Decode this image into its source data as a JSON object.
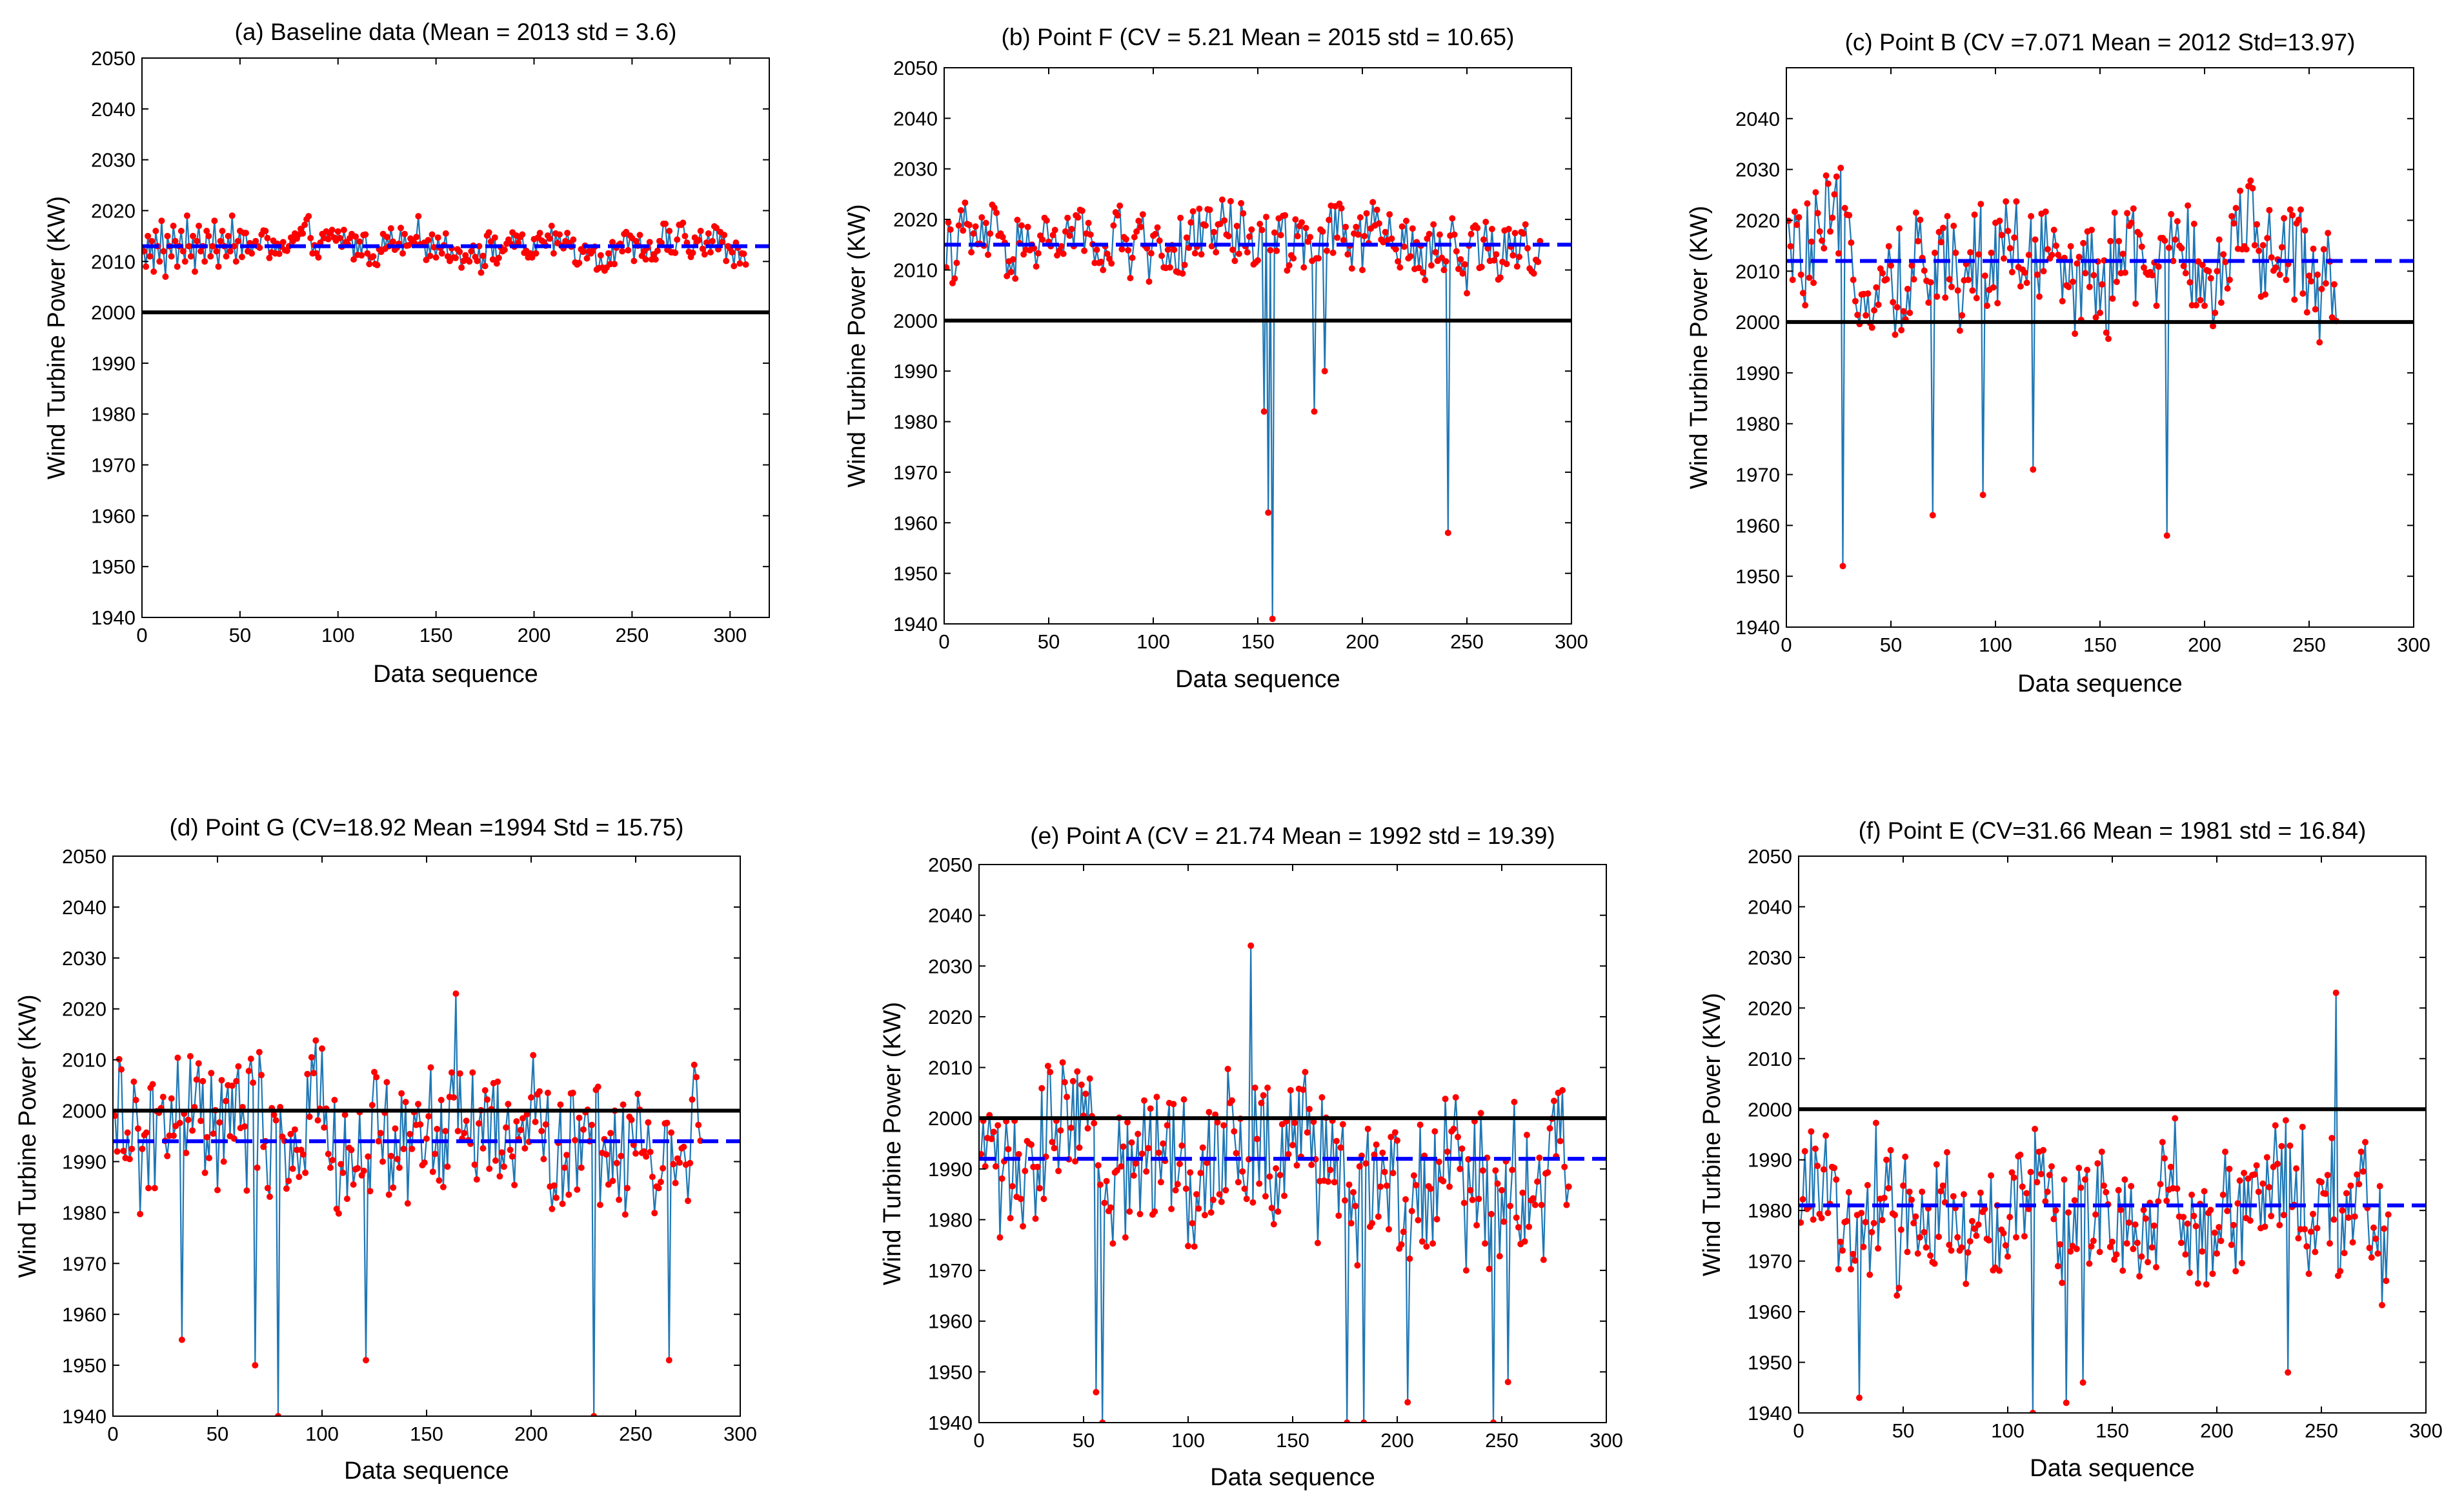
{
  "colors": {
    "series_line": "#1f77b4",
    "markers": "#ff0000",
    "mean_line": "#0000ff",
    "reference_line": "#000000"
  },
  "chart_data": [
    {
      "type": "line",
      "title": "(a) Baseline data (Mean = 2013 std = 3.6)",
      "xlabel": "Data sequence",
      "ylabel": "Wind Turbine Power (KW)",
      "xlim": [
        0,
        320
      ],
      "ylim": [
        1940,
        2050
      ],
      "xticks": [
        0,
        50,
        100,
        150,
        200,
        250,
        300
      ],
      "yticks": [
        1940,
        1950,
        1960,
        1970,
        1980,
        1990,
        2000,
        2010,
        2020,
        2030,
        2040,
        2050
      ],
      "mean": 2013,
      "reference": 2000,
      "series": {
        "name": "Wind Turbine Power",
        "n": 308,
        "center": 2013,
        "spread": 3.6,
        "spikes": [],
        "values": [
          2012,
          2009,
          2015,
          2011,
          2014,
          2008,
          2016,
          2013,
          2010,
          2018,
          2012,
          2007,
          2015,
          2013,
          2011,
          2017,
          2014,
          2009,
          2013,
          2016,
          2012,
          2010,
          2019,
          2013,
          2011,
          2015,
          2008,
          2014,
          2017,
          2012,
          2013,
          2010,
          2016,
          2015,
          2011,
          2013,
          2018,
          2012,
          2009,
          2014,
          2016,
          2013,
          2011,
          2015,
          2012,
          2019,
          2013,
          2010,
          2014,
          2016
        ]
      }
    },
    {
      "type": "line",
      "title": "(b)  Point F (CV = 5.21 Mean = 2015 std = 10.65)",
      "xlabel": "Data sequence",
      "ylabel": "Wind Turbine Power (KW)",
      "xlim": [
        0,
        300
      ],
      "ylim": [
        1940,
        2050
      ],
      "xticks": [
        0,
        50,
        100,
        150,
        200,
        250,
        300
      ],
      "yticks": [
        1940,
        1950,
        1960,
        1970,
        1980,
        1990,
        2000,
        2010,
        2020,
        2030,
        2040,
        2050
      ],
      "mean": 2015,
      "reference": 2000,
      "series": {
        "name": "Wind Turbine Power",
        "n": 285,
        "center": 2015,
        "spread": 7,
        "spikes": [
          [
            152,
            1982
          ],
          [
            154,
            1962
          ],
          [
            156,
            1941
          ],
          [
            176,
            1982
          ],
          [
            181,
            1990
          ],
          [
            240,
            1958
          ]
        ]
      }
    },
    {
      "type": "line",
      "title": "(c) Point B (CV =7.071 Mean = 2012 Std=13.97)",
      "xlabel": "Data sequence",
      "ylabel": "Wind Turbine Power (KW)",
      "xlim": [
        0,
        300
      ],
      "ylim": [
        1940,
        2050
      ],
      "xticks": [
        0,
        50,
        100,
        150,
        200,
        250,
        300
      ],
      "yticks": [
        1940,
        1950,
        1960,
        1970,
        1980,
        1990,
        2000,
        2010,
        2020,
        2030,
        2040
      ],
      "mean": 2012,
      "reference": 2000,
      "series": {
        "name": "Wind Turbine Power",
        "n": 263,
        "center": 2012,
        "spread": 12,
        "spikes": [
          [
            26,
            1952
          ],
          [
            69,
            1962
          ],
          [
            93,
            1966
          ],
          [
            117,
            1971
          ],
          [
            181,
            1958
          ]
        ]
      }
    },
    {
      "type": "line",
      "title": "(d)  Point G (CV=18.92 Mean =1994 Std = 15.75)",
      "xlabel": "Data sequence",
      "ylabel": "Wind Turbine Power (KW)",
      "xlim": [
        0,
        300
      ],
      "ylim": [
        1940,
        2050
      ],
      "xticks": [
        0,
        50,
        100,
        150,
        200,
        250,
        300
      ],
      "yticks": [
        1940,
        1950,
        1960,
        1970,
        1980,
        1990,
        2000,
        2010,
        2020,
        2030,
        2040,
        2050
      ],
      "mean": 1994,
      "reference": 2000,
      "series": {
        "name": "Wind Turbine Power",
        "n": 281,
        "center": 1994,
        "spread": 14,
        "spikes": [
          [
            32,
            1955
          ],
          [
            67,
            1950
          ],
          [
            78,
            1940
          ],
          [
            120,
            1951
          ],
          [
            163,
            2023
          ],
          [
            229,
            1940
          ],
          [
            265,
            1951
          ]
        ]
      }
    },
    {
      "type": "line",
      "title": "(e) Point A (CV = 21.74 Mean = 1992 std = 19.39)",
      "xlabel": "Data sequence",
      "ylabel": "Wind Turbine Power (KW)",
      "xlim": [
        0,
        300
      ],
      "ylim": [
        1940,
        2050
      ],
      "xticks": [
        0,
        50,
        100,
        150,
        200,
        250,
        300
      ],
      "yticks": [
        1940,
        1950,
        1960,
        1970,
        1980,
        1990,
        2000,
        2010,
        2020,
        2030,
        2040,
        2050
      ],
      "mean": 1992,
      "reference": 2000,
      "series": {
        "name": "Wind Turbine Power",
        "n": 282,
        "center": 1992,
        "spread": 16,
        "spikes": [
          [
            55,
            1946
          ],
          [
            58,
            1940
          ],
          [
            129,
            2034
          ],
          [
            175,
            1940
          ],
          [
            183,
            1940
          ],
          [
            204,
            1944
          ],
          [
            245,
            1940
          ],
          [
            252,
            1948
          ]
        ]
      }
    },
    {
      "type": "line",
      "title": "(f)  Point E (CV=31.66 Mean = 1981 std = 16.84)",
      "xlabel": "Data sequence",
      "ylabel": "Wind Turbine Power (KW)",
      "xlim": [
        0,
        300
      ],
      "ylim": [
        1940,
        2050
      ],
      "xticks": [
        0,
        50,
        100,
        150,
        200,
        250,
        300
      ],
      "yticks": [
        1940,
        1950,
        1960,
        1970,
        1980,
        1990,
        2000,
        2010,
        2020,
        2030,
        2040,
        2050
      ],
      "mean": 1981,
      "reference": 2000,
      "series": {
        "name": "Wind Turbine Power",
        "n": 282,
        "center": 1981,
        "spread": 14,
        "spikes": [
          [
            28,
            1943
          ],
          [
            111,
            1940
          ],
          [
            127,
            1942
          ],
          [
            135,
            1946
          ],
          [
            233,
            1948
          ],
          [
            256,
            2023
          ]
        ]
      }
    }
  ]
}
